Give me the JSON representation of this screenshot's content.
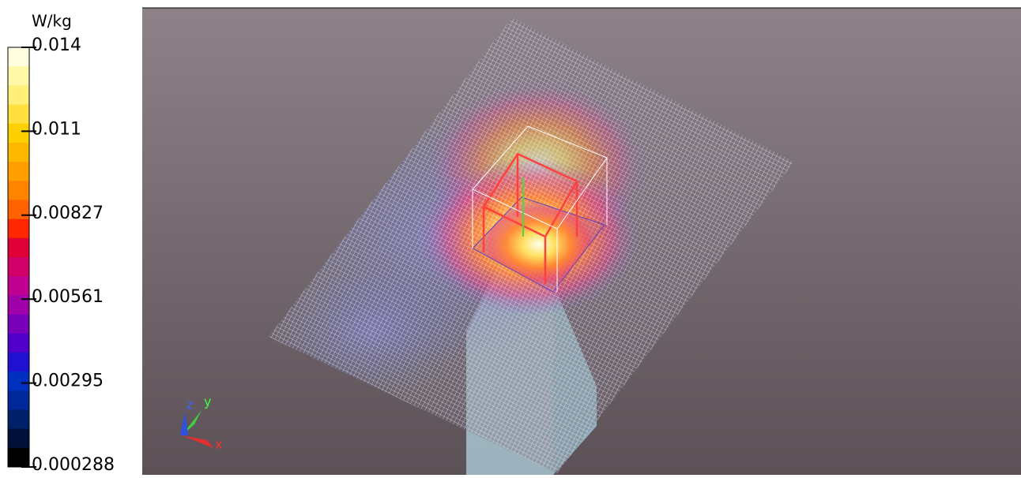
{
  "colorbar": {
    "unit": "W/kg",
    "labels": [
      "0.014",
      "0.011",
      "0.00827",
      "0.00561",
      "0.00295",
      "0.000288"
    ]
  },
  "axes": {
    "z": "z",
    "y": "y",
    "x": "x"
  }
}
